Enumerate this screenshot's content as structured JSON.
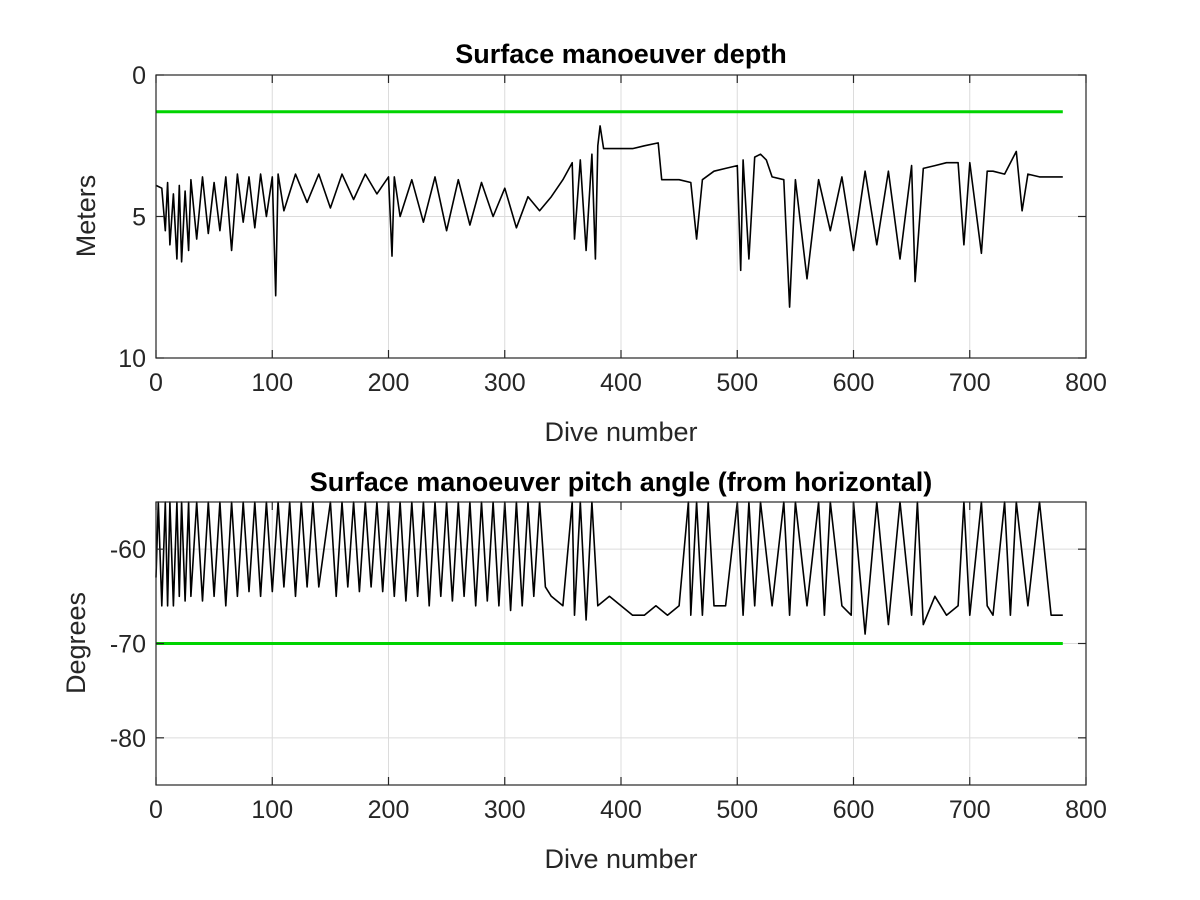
{
  "chart_data": [
    {
      "type": "line",
      "title": "Surface manoeuver depth",
      "xlabel": "Dive number",
      "ylabel": "Meters",
      "xlim": [
        0,
        800
      ],
      "ylim": [
        0,
        10
      ],
      "y_reversed": true,
      "grid": true,
      "xticks": [
        0,
        100,
        200,
        300,
        400,
        500,
        600,
        700,
        800
      ],
      "yticks": [
        0,
        5,
        10
      ],
      "series": [
        {
          "color": "#000000",
          "x": [
            0,
            5,
            8,
            10,
            12,
            15,
            18,
            20,
            22,
            25,
            28,
            30,
            35,
            40,
            45,
            50,
            55,
            60,
            65,
            70,
            75,
            80,
            85,
            90,
            95,
            100,
            103,
            105,
            110,
            120,
            130,
            140,
            150,
            160,
            170,
            180,
            190,
            200,
            203,
            205,
            210,
            220,
            230,
            240,
            250,
            260,
            270,
            280,
            290,
            300,
            310,
            320,
            330,
            340,
            350,
            358,
            360,
            365,
            370,
            375,
            378,
            380,
            382,
            385,
            390,
            400,
            410,
            420,
            432,
            435,
            440,
            450,
            460,
            465,
            470,
            480,
            490,
            500,
            503,
            505,
            510,
            515,
            520,
            525,
            530,
            540,
            545,
            550,
            560,
            570,
            580,
            590,
            600,
            610,
            620,
            630,
            640,
            650,
            653,
            660,
            670,
            680,
            690,
            695,
            700,
            710,
            715,
            720,
            730,
            740,
            745,
            750,
            760,
            770,
            780
          ],
          "y": [
            3.9,
            4.0,
            5.5,
            3.8,
            6.0,
            4.2,
            6.5,
            3.9,
            6.6,
            4.1,
            6.2,
            3.7,
            5.8,
            3.6,
            5.6,
            3.8,
            5.5,
            3.6,
            6.2,
            3.5,
            5.2,
            3.6,
            5.4,
            3.5,
            5.0,
            3.6,
            7.8,
            3.5,
            4.8,
            3.5,
            4.5,
            3.5,
            4.7,
            3.5,
            4.4,
            3.5,
            4.2,
            3.6,
            6.4,
            3.6,
            5.0,
            3.7,
            5.2,
            3.6,
            5.5,
            3.7,
            5.3,
            3.8,
            5.0,
            4.0,
            5.4,
            4.3,
            4.8,
            4.3,
            3.7,
            3.1,
            5.8,
            3.0,
            6.2,
            2.8,
            6.5,
            2.5,
            1.8,
            2.6,
            2.6,
            2.6,
            2.6,
            2.5,
            2.4,
            3.7,
            3.7,
            3.7,
            3.8,
            5.8,
            3.7,
            3.4,
            3.3,
            3.2,
            6.9,
            3.0,
            6.5,
            2.9,
            2.8,
            3.0,
            3.6,
            3.7,
            8.2,
            3.7,
            7.2,
            3.7,
            5.5,
            3.6,
            6.2,
            3.4,
            6.0,
            3.4,
            6.5,
            3.2,
            7.3,
            3.3,
            3.2,
            3.1,
            3.1,
            6.0,
            3.1,
            6.3,
            3.4,
            3.4,
            3.5,
            2.7,
            4.8,
            3.5,
            3.6,
            3.6,
            3.6
          ]
        },
        {
          "color": "#00d400",
          "x": [
            0,
            780
          ],
          "y": [
            1.3,
            1.3
          ]
        }
      ]
    },
    {
      "type": "line",
      "title": "Surface manoeuver pitch angle (from horizontal)",
      "xlabel": "Dive number",
      "ylabel": "Degrees",
      "xlim": [
        0,
        800
      ],
      "ylim": [
        -85,
        -55
      ],
      "grid": true,
      "xticks": [
        0,
        100,
        200,
        300,
        400,
        500,
        600,
        700,
        800
      ],
      "yticks": [
        -80,
        -70,
        -60
      ],
      "series": [
        {
          "color": "#000000",
          "x": [
            0,
            2,
            5,
            8,
            10,
            12,
            15,
            18,
            20,
            22,
            25,
            28,
            30,
            35,
            40,
            45,
            50,
            55,
            60,
            65,
            70,
            75,
            80,
            85,
            90,
            95,
            100,
            105,
            110,
            115,
            120,
            125,
            130,
            135,
            140,
            150,
            155,
            160,
            165,
            170,
            175,
            180,
            185,
            190,
            195,
            200,
            205,
            210,
            215,
            220,
            225,
            230,
            235,
            240,
            245,
            250,
            255,
            260,
            265,
            270,
            275,
            280,
            285,
            290,
            295,
            300,
            305,
            310,
            315,
            320,
            325,
            330,
            335,
            340,
            350,
            358,
            360,
            365,
            370,
            375,
            380,
            390,
            400,
            410,
            420,
            430,
            440,
            450,
            458,
            460,
            465,
            470,
            475,
            480,
            490,
            500,
            505,
            510,
            515,
            520,
            530,
            540,
            545,
            550,
            560,
            570,
            575,
            580,
            590,
            598,
            600,
            610,
            620,
            630,
            640,
            650,
            655,
            660,
            670,
            680,
            690,
            695,
            700,
            710,
            715,
            720,
            730,
            735,
            740,
            750,
            760,
            770,
            780
          ],
          "y": [
            -63,
            -55,
            -66,
            -55,
            -66,
            -55,
            -66,
            -55,
            -65,
            -55,
            -65.5,
            -55,
            -65,
            -55,
            -65.5,
            -55,
            -65,
            -55,
            -66,
            -55,
            -65,
            -55,
            -64.5,
            -55,
            -65,
            -55,
            -64.5,
            -55,
            -64,
            -55,
            -65,
            -55,
            -64,
            -55,
            -64,
            -55,
            -65,
            -55,
            -64,
            -55,
            -64.5,
            -55,
            -64,
            -55,
            -64.5,
            -55,
            -65,
            -55,
            -65.5,
            -55,
            -65,
            -55,
            -66,
            -55,
            -65,
            -55,
            -65.5,
            -55,
            -65,
            -55,
            -66,
            -55,
            -65.5,
            -55,
            -66,
            -55,
            -66.5,
            -55,
            -66,
            -55,
            -65,
            -55,
            -64,
            -65,
            -66,
            -55,
            -67,
            -55,
            -67.5,
            -55,
            -66,
            -65,
            -66,
            -67,
            -67,
            -66,
            -67,
            -66,
            -55,
            -67,
            -55,
            -67,
            -55,
            -66,
            -66,
            -55,
            -67,
            -55,
            -66,
            -55,
            -66,
            -55,
            -67,
            -55,
            -66,
            -55,
            -67,
            -55,
            -66,
            -67,
            -55,
            -69,
            -55,
            -68,
            -55,
            -67,
            -55,
            -68,
            -65,
            -67,
            -66,
            -55,
            -67,
            -55,
            -66,
            -67,
            -55,
            -67,
            -55,
            -66,
            -55,
            -67,
            -67
          ]
        },
        {
          "color": "#00d400",
          "x": [
            0,
            780
          ],
          "y": [
            -70,
            -70
          ]
        }
      ]
    }
  ]
}
